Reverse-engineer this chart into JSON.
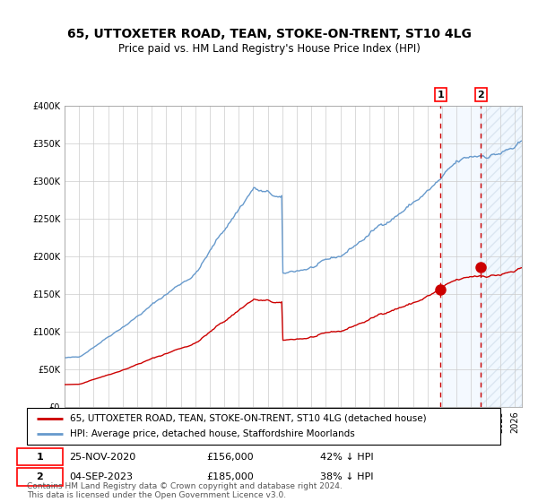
{
  "title": "65, UTTOXETER ROAD, TEAN, STOKE-ON-TRENT, ST10 4LG",
  "subtitle": "Price paid vs. HM Land Registry's House Price Index (HPI)",
  "legend_line1": "65, UTTOXETER ROAD, TEAN, STOKE-ON-TRENT, ST10 4LG (detached house)",
  "legend_line2": "HPI: Average price, detached house, Staffordshire Moorlands",
  "annotation1_label": "1",
  "annotation1_date": "25-NOV-2020",
  "annotation1_price": "£156,000",
  "annotation1_hpi": "42% ↓ HPI",
  "annotation2_label": "2",
  "annotation2_date": "04-SEP-2023",
  "annotation2_price": "£185,000",
  "annotation2_hpi": "38% ↓ HPI",
  "footnote": "Contains HM Land Registry data © Crown copyright and database right 2024.\nThis data is licensed under the Open Government Licence v3.0.",
  "hpi_color": "#6699cc",
  "price_color": "#cc0000",
  "dot_color": "#cc0000",
  "vline_color": "#cc0000",
  "shade_color": "#ddeeff",
  "hatch_color": "#bbccdd",
  "grid_color": "#cccccc",
  "ylim": [
    0,
    400000
  ],
  "yticks": [
    0,
    50000,
    100000,
    150000,
    200000,
    250000,
    300000,
    350000,
    400000
  ],
  "sale1_year": 2020.9,
  "sale2_year": 2023.67,
  "sale1_price": 156000,
  "sale2_price": 185000,
  "xlim_start": 1995,
  "xlim_end": 2026.5
}
